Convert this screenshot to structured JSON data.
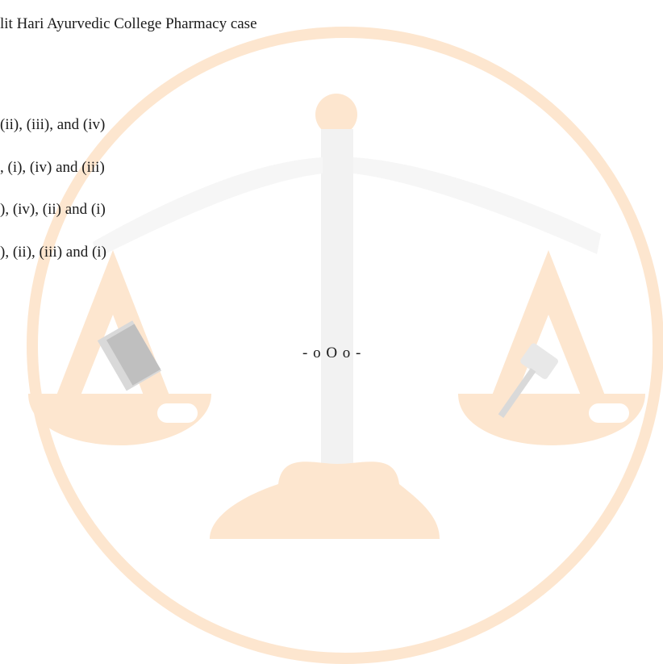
{
  "document": {
    "heading_fragment": "lit Hari Ayurvedic College Pharmacy case",
    "options": [
      "(ii), (iii), and (iv)",
      ", (i), (iv) and (iii)",
      "), (iv), (ii) and (i)",
      "), (ii), (iii) and (i)"
    ],
    "end_mark": "- o O o -"
  }
}
